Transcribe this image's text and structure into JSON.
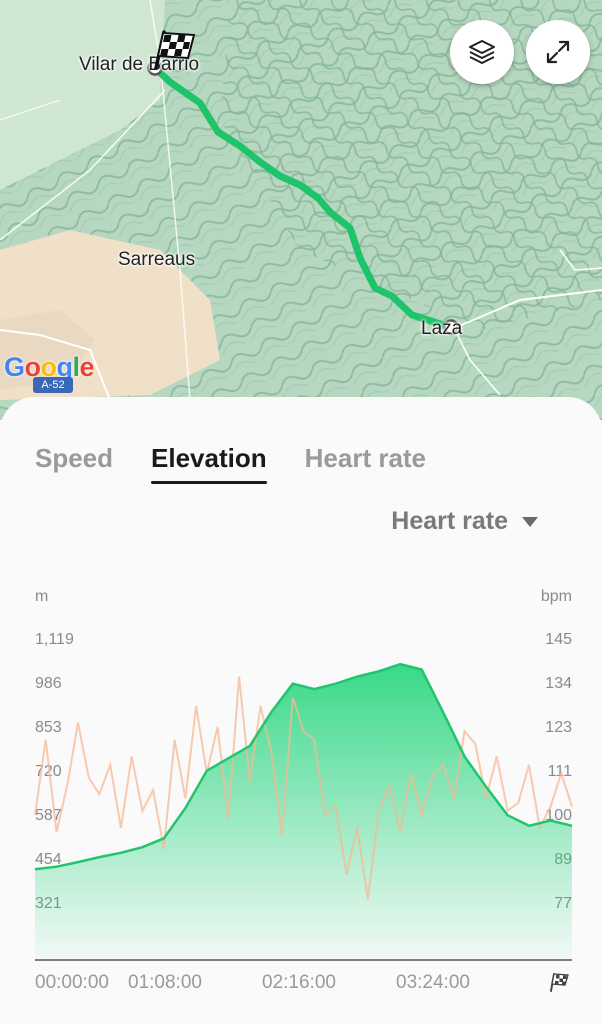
{
  "map": {
    "labels": {
      "start_town": "Vilar de Barrio",
      "town_mid": "Sarreaus",
      "end_town": "Laza"
    },
    "attribution": "Google",
    "road_shield": "A-52",
    "route_color": "#1fc46a"
  },
  "buttons": {
    "layers": "layers-icon",
    "expand": "expand-icon"
  },
  "tabs": [
    {
      "label": "Speed",
      "active": false
    },
    {
      "label": "Elevation",
      "active": true
    },
    {
      "label": "Heart rate",
      "active": false
    }
  ],
  "overlay_select": {
    "label": "Heart rate"
  },
  "chart_data": {
    "type": "area",
    "left_unit": "m",
    "right_unit": "bpm",
    "left_ticks": [
      "1,119",
      "986",
      "853",
      "720",
      "587",
      "454",
      "321"
    ],
    "right_ticks": [
      "145",
      "134",
      "123",
      "111",
      "100",
      "89",
      "77"
    ],
    "x_ticks": [
      "00:00:00",
      "01:08:00",
      "02:16:00",
      "03:24:00"
    ],
    "end_icon": "finish-flag-icon",
    "elevation_ylim": [
      188,
      1252
    ],
    "hr_ylim": [
      66,
      156
    ],
    "colors": {
      "elevation": "#2fd783",
      "elevation_line": "#22c46f",
      "heart_rate": "#f6b894"
    },
    "series": [
      {
        "name": "Elevation",
        "x_fraction": [
          0,
          0.04,
          0.08,
          0.12,
          0.16,
          0.2,
          0.24,
          0.28,
          0.32,
          0.36,
          0.4,
          0.44,
          0.48,
          0.52,
          0.56,
          0.6,
          0.64,
          0.68,
          0.72,
          0.76,
          0.8,
          0.84,
          0.88,
          0.92,
          0.96,
          1.0
        ],
        "values": [
          438,
          445,
          458,
          472,
          484,
          500,
          525,
          610,
          715,
          750,
          785,
          880,
          960,
          945,
          960,
          980,
          995,
          1015,
          1000,
          880,
          755,
          670,
          590,
          560,
          575,
          560
        ]
      },
      {
        "name": "Heart rate",
        "x_fraction": [
          0,
          0.02,
          0.04,
          0.06,
          0.08,
          0.1,
          0.12,
          0.14,
          0.16,
          0.18,
          0.2,
          0.22,
          0.24,
          0.26,
          0.28,
          0.3,
          0.32,
          0.34,
          0.36,
          0.38,
          0.4,
          0.42,
          0.44,
          0.46,
          0.48,
          0.5,
          0.52,
          0.54,
          0.56,
          0.58,
          0.6,
          0.62,
          0.64,
          0.66,
          0.68,
          0.7,
          0.72,
          0.74,
          0.76,
          0.78,
          0.8,
          0.82,
          0.84,
          0.86,
          0.88,
          0.9,
          0.92,
          0.94,
          0.96,
          0.98,
          1.0
        ],
        "values": [
          100,
          118,
          96,
          107,
          122,
          109,
          105,
          112,
          97,
          114,
          101,
          106,
          92,
          118,
          104,
          126,
          110,
          121,
          99,
          133,
          108,
          126,
          115,
          95,
          128,
          120,
          118,
          100,
          102,
          86,
          97,
          80,
          101,
          107,
          96,
          110,
          100,
          109,
          112,
          104,
          120,
          117,
          104,
          114,
          101,
          103,
          112,
          97,
          102,
          110,
          102
        ]
      }
    ]
  }
}
